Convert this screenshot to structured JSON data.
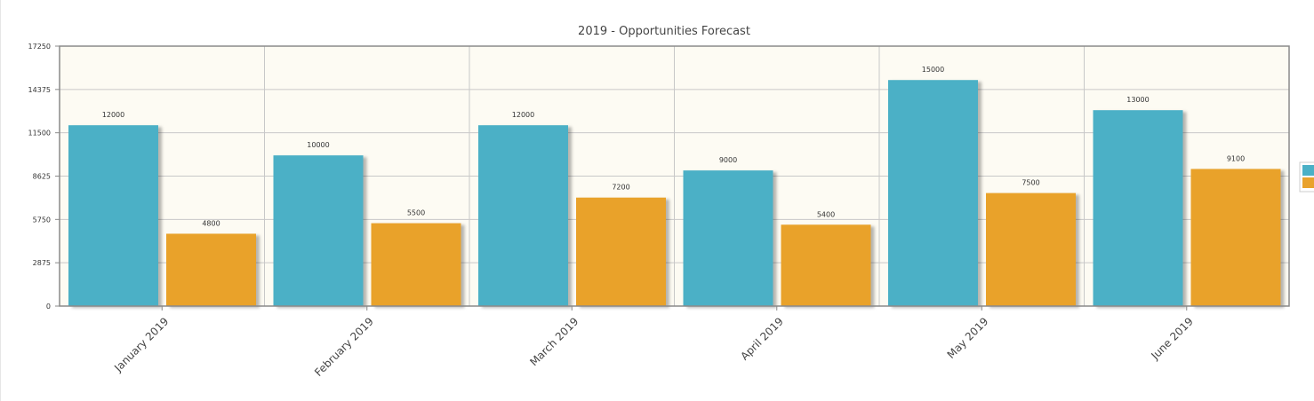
{
  "chart_data": {
    "type": "bar",
    "title": "2019 - Opportunities Forecast",
    "categories": [
      "January 2019",
      "February 2019",
      "March 2019",
      "April 2019",
      "May 2019",
      "June 2019"
    ],
    "series": [
      {
        "values": [
          12000,
          10000,
          12000,
          9000,
          15000,
          13000
        ],
        "color": "#4bb0c6"
      },
      {
        "values": [
          4800,
          5500,
          7200,
          5400,
          7500,
          9100
        ],
        "color": "#e9a22c"
      }
    ],
    "yticks": [
      0,
      2875,
      5750,
      8625,
      11500,
      14375,
      17250
    ],
    "ylim": [
      0,
      17250
    ],
    "xlabel": "",
    "ylabel": "",
    "grid": true,
    "legend": "right",
    "plot_background": "#fdfbf3",
    "grid_color": "#c8c8c8",
    "axis_color": "#8a8a8a"
  }
}
